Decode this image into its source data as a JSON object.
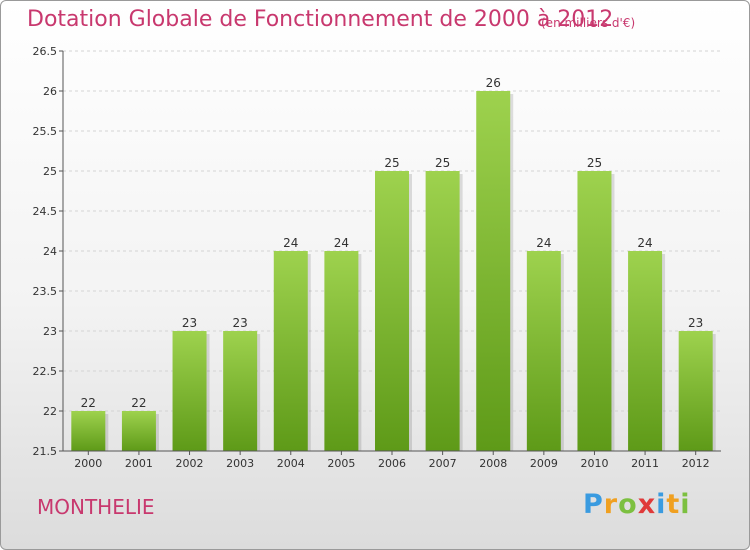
{
  "chart_data": {
    "type": "bar",
    "title": "Dotation Globale de Fonctionnement de 2000 à 2012",
    "subtitle": "(en milliers d'€)",
    "xlabel": "",
    "ylabel": "",
    "categories": [
      "2000",
      "2001",
      "2002",
      "2003",
      "2004",
      "2005",
      "2006",
      "2007",
      "2008",
      "2009",
      "2010",
      "2011",
      "2012"
    ],
    "values": [
      22,
      22,
      23,
      23,
      24,
      24,
      25,
      25,
      26,
      24,
      25,
      24,
      23
    ],
    "data_labels": [
      "22",
      "22",
      "23",
      "23",
      "24",
      "24",
      "25",
      "25",
      "26",
      "24",
      "25",
      "24",
      "23"
    ],
    "ylim": [
      21.5,
      26.5
    ],
    "yticks": [
      21.5,
      22,
      22.5,
      23,
      23.5,
      24,
      24.5,
      25,
      25.5,
      26,
      26.5
    ],
    "ytick_labels": [
      "21.5",
      "22",
      "22.5",
      "23",
      "23.5",
      "24",
      "24.5",
      "25",
      "25.5",
      "26",
      "26.5"
    ],
    "grid": true,
    "bar_color": "#7cbf36"
  },
  "footer": {
    "city": "MONTHELIE",
    "brand_letters": [
      "P",
      "r",
      "o",
      "x",
      "i",
      "t",
      "i"
    ],
    "brand_colors": [
      "#3a9be0",
      "#f0a020",
      "#7cc040",
      "#e03a3a",
      "#3a9be0",
      "#f0a020",
      "#7cc040"
    ]
  }
}
